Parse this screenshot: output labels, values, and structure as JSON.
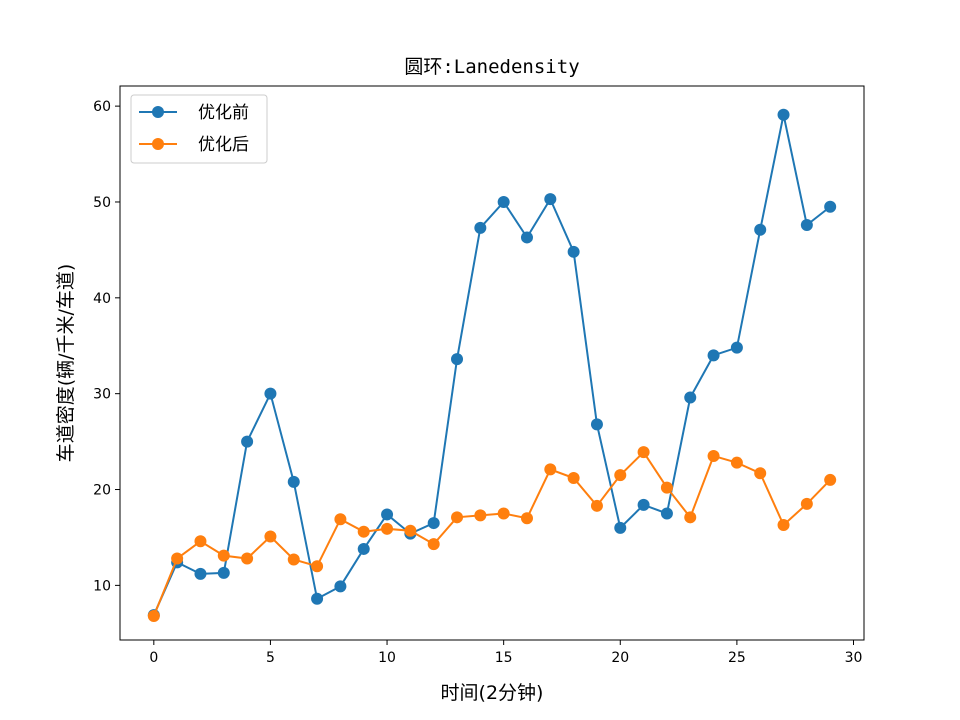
{
  "chart_data": {
    "type": "line",
    "title": "圆环:Lanedensity",
    "xlabel": "时间(2分钟)",
    "ylabel": "车道密度(辆/千米/车道)",
    "xlim": [
      -1.45,
      30.45
    ],
    "ylim": [
      4.3,
      62.1
    ],
    "xticks": [
      0,
      5,
      10,
      15,
      20,
      25,
      30
    ],
    "yticks": [
      10,
      20,
      30,
      40,
      50,
      60
    ],
    "grid": false,
    "legend_position": "top-left",
    "x": [
      0,
      1,
      2,
      3,
      4,
      5,
      6,
      7,
      8,
      9,
      10,
      11,
      12,
      13,
      14,
      15,
      16,
      17,
      18,
      19,
      20,
      21,
      22,
      23,
      24,
      25,
      26,
      27,
      28,
      29
    ],
    "series": [
      {
        "name": "优化前",
        "color": "#1f77b4",
        "marker": "circle",
        "values": [
          6.9,
          12.4,
          11.2,
          11.3,
          25.0,
          30.0,
          20.8,
          8.6,
          9.9,
          13.8,
          17.4,
          15.4,
          16.5,
          33.6,
          47.3,
          50.0,
          46.3,
          50.3,
          44.8,
          26.8,
          16.0,
          18.4,
          17.5,
          29.6,
          34.0,
          34.8,
          47.1,
          59.1,
          47.6,
          49.5
        ]
      },
      {
        "name": "优化后",
        "color": "#ff7f0e",
        "marker": "circle",
        "values": [
          6.8,
          12.8,
          14.6,
          13.1,
          12.8,
          15.1,
          12.7,
          12.0,
          16.9,
          15.6,
          15.9,
          15.7,
          14.3,
          17.1,
          17.3,
          17.5,
          17.0,
          22.1,
          21.2,
          18.3,
          21.5,
          23.9,
          20.2,
          17.1,
          23.5,
          22.8,
          21.7,
          16.3,
          18.5,
          21.0
        ]
      }
    ]
  }
}
